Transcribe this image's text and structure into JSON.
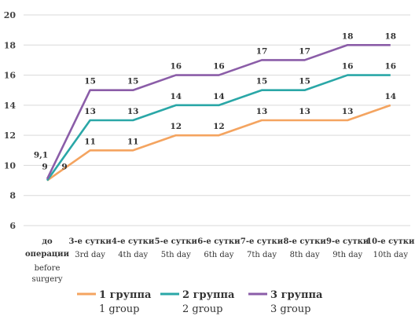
{
  "chart_data": {
    "type": "line",
    "title": "",
    "xlabel": "",
    "ylabel": "",
    "ylim": [
      6,
      20
    ],
    "yticks": [
      6,
      8,
      10,
      12,
      14,
      16,
      18,
      20
    ],
    "grid": true,
    "legend_position": "bottom",
    "categories": [
      {
        "ru": "до операции",
        "en": "before surgery"
      },
      {
        "ru": "3-е сутки",
        "en": "3rd day"
      },
      {
        "ru": "4-е сутки",
        "en": "4th day"
      },
      {
        "ru": "5-е сутки",
        "en": "5th day"
      },
      {
        "ru": "6-е сутки",
        "en": "6th day"
      },
      {
        "ru": "7-е сутки",
        "en": "7th day"
      },
      {
        "ru": "8-е сутки",
        "en": "8th day"
      },
      {
        "ru": "9-е сутки",
        "en": "9th day"
      },
      {
        "ru": "10-е сутки",
        "en": "10th day"
      }
    ],
    "series": [
      {
        "name": "1 группа",
        "name_en": "1 group",
        "color": "#F4A460",
        "values": [
          9,
          11,
          11,
          12,
          12,
          13,
          13,
          13,
          14
        ],
        "labels": [
          "9",
          "11",
          "11",
          "12",
          "12",
          "13",
          "13",
          "13",
          "14"
        ]
      },
      {
        "name": "2 группа",
        "name_en": "2 group",
        "color": "#2AA7A7",
        "values": [
          9,
          13,
          13,
          14,
          14,
          15,
          15,
          16,
          16
        ],
        "labels": [
          "9",
          "13",
          "13",
          "14",
          "14",
          "15",
          "15",
          "16",
          "16"
        ]
      },
      {
        "name": "3 группа",
        "name_en": "3 group",
        "color": "#8B5DA8",
        "values": [
          9.1,
          15,
          15,
          16,
          16,
          17,
          17,
          18,
          18
        ],
        "labels": [
          "9,1",
          "15",
          "15",
          "16",
          "16",
          "17",
          "17",
          "18",
          "18"
        ]
      }
    ]
  }
}
